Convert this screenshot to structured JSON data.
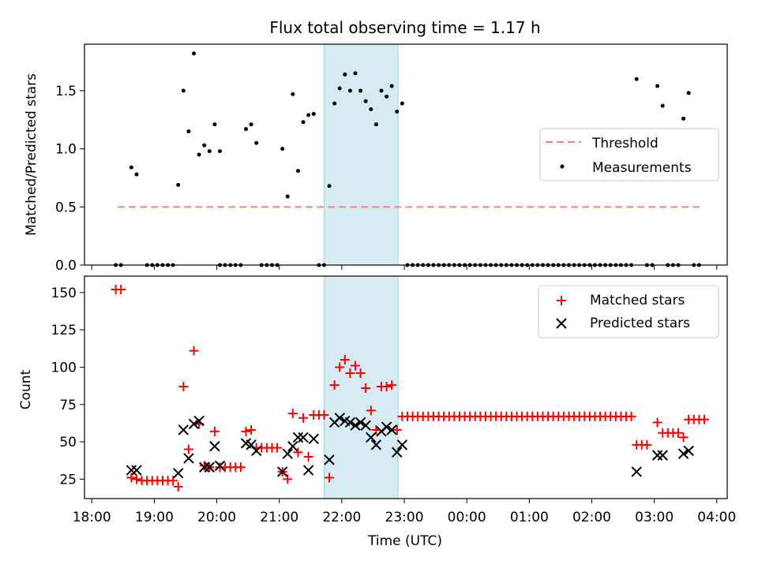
{
  "chart_data": [
    {
      "type": "scatter",
      "title": "Flux total observing time = 1.17 h",
      "xlabel": "",
      "ylabel": "Matched/Predicted stars",
      "ylim": [
        0,
        1.9
      ],
      "xlim": [
        "17:53",
        "04:10"
      ],
      "yticks": [
        "0.0",
        "0.5",
        "1.0",
        "1.5"
      ],
      "shaded_region": [
        "21:43",
        "22:54"
      ],
      "legend_position": "center-right",
      "threshold": {
        "name": "Threshold",
        "value": 0.5,
        "x_range": [
          "18:25",
          "03:45"
        ],
        "color": "#ff7f7f"
      },
      "series": [
        {
          "name": "Measurements",
          "color": "#000000",
          "points": [
            [
              "18:23",
              0
            ],
            [
              "18:28",
              0
            ],
            [
              "18:38",
              0.84
            ],
            [
              "18:43",
              0.78
            ],
            [
              "18:53",
              0
            ],
            [
              "18:58",
              0
            ],
            [
              "19:03",
              0
            ],
            [
              "19:08",
              0
            ],
            [
              "19:13",
              0
            ],
            [
              "19:18",
              0
            ],
            [
              "19:23",
              0.69
            ],
            [
              "19:28",
              1.5
            ],
            [
              "19:33",
              1.15
            ],
            [
              "19:38",
              1.82
            ],
            [
              "19:43",
              0.95
            ],
            [
              "19:48",
              1.03
            ],
            [
              "19:53",
              0.98
            ],
            [
              "19:58",
              1.21
            ],
            [
              "20:03",
              0.98
            ],
            [
              "20:03",
              0
            ],
            [
              "20:08",
              0
            ],
            [
              "20:13",
              0
            ],
            [
              "20:18",
              0
            ],
            [
              "20:23",
              0
            ],
            [
              "20:28",
              1.17
            ],
            [
              "20:33",
              1.21
            ],
            [
              "20:38",
              1.05
            ],
            [
              "20:43",
              0
            ],
            [
              "20:48",
              0
            ],
            [
              "20:53",
              0
            ],
            [
              "20:58",
              0
            ],
            [
              "21:03",
              1.0
            ],
            [
              "21:08",
              0.59
            ],
            [
              "21:13",
              1.47
            ],
            [
              "21:18",
              0.81
            ],
            [
              "21:23",
              1.23
            ],
            [
              "21:28",
              1.29
            ],
            [
              "21:33",
              1.3
            ],
            [
              "21:38",
              0
            ],
            [
              "21:43",
              0
            ],
            [
              "21:48",
              0.68
            ],
            [
              "21:53",
              1.39
            ],
            [
              "21:58",
              1.52
            ],
            [
              "22:03",
              1.64
            ],
            [
              "22:08",
              1.5
            ],
            [
              "22:13",
              1.65
            ],
            [
              "22:18",
              1.5
            ],
            [
              "22:23",
              1.41
            ],
            [
              "22:28",
              1.34
            ],
            [
              "22:33",
              1.21
            ],
            [
              "22:38",
              1.5
            ],
            [
              "22:43",
              1.45
            ],
            [
              "22:48",
              1.54
            ],
            [
              "22:53",
              1.32
            ],
            [
              "22:58",
              1.39
            ],
            [
              "23:03",
              0
            ],
            [
              "23:08",
              0
            ],
            [
              "23:13",
              0
            ],
            [
              "23:18",
              0
            ],
            [
              "23:23",
              0
            ],
            [
              "23:28",
              0
            ],
            [
              "23:33",
              0
            ],
            [
              "23:38",
              0
            ],
            [
              "23:43",
              0
            ],
            [
              "23:48",
              0
            ],
            [
              "23:53",
              0
            ],
            [
              "23:58",
              0
            ],
            [
              "00:03",
              0
            ],
            [
              "00:08",
              0
            ],
            [
              "00:13",
              0
            ],
            [
              "00:18",
              0
            ],
            [
              "00:23",
              0
            ],
            [
              "00:28",
              0
            ],
            [
              "00:33",
              0
            ],
            [
              "00:38",
              0
            ],
            [
              "00:43",
              0
            ],
            [
              "00:48",
              0
            ],
            [
              "00:53",
              0
            ],
            [
              "00:58",
              0
            ],
            [
              "01:03",
              0
            ],
            [
              "01:08",
              0
            ],
            [
              "01:13",
              0
            ],
            [
              "01:18",
              0
            ],
            [
              "01:23",
              0
            ],
            [
              "01:28",
              0
            ],
            [
              "01:33",
              0
            ],
            [
              "01:38",
              0
            ],
            [
              "01:43",
              0
            ],
            [
              "01:48",
              0
            ],
            [
              "01:53",
              0
            ],
            [
              "01:58",
              0
            ],
            [
              "02:03",
              0
            ],
            [
              "02:08",
              0
            ],
            [
              "02:13",
              0
            ],
            [
              "02:18",
              0
            ],
            [
              "02:23",
              0
            ],
            [
              "02:28",
              0
            ],
            [
              "02:33",
              0
            ],
            [
              "02:38",
              0
            ],
            [
              "02:43",
              1.6
            ],
            [
              "02:53",
              0
            ],
            [
              "02:58",
              0
            ],
            [
              "03:03",
              1.54
            ],
            [
              "03:08",
              1.37
            ],
            [
              "03:13",
              0
            ],
            [
              "03:18",
              0
            ],
            [
              "03:23",
              0
            ],
            [
              "03:28",
              1.26
            ],
            [
              "03:33",
              1.48
            ],
            [
              "03:38",
              0
            ],
            [
              "03:43",
              0
            ]
          ]
        }
      ]
    },
    {
      "type": "scatter",
      "title": "",
      "xlabel": "Time (UTC)",
      "ylabel": "Count",
      "ylim": [
        12,
        161
      ],
      "xlim": [
        "17:53",
        "04:10"
      ],
      "yticks": [
        "25",
        "50",
        "75",
        "100",
        "125",
        "150"
      ],
      "xticks": [
        "18:00",
        "19:00",
        "20:00",
        "21:00",
        "22:00",
        "23:00",
        "00:00",
        "01:00",
        "02:00",
        "03:00",
        "04:00"
      ],
      "shaded_region": [
        "21:43",
        "22:54"
      ],
      "legend_position": "upper-right",
      "series": [
        {
          "name": "Matched stars",
          "color": "#ff0000",
          "marker": "+",
          "points": [
            [
              "18:23",
              152
            ],
            [
              "18:28",
              152
            ],
            [
              "18:38",
              26
            ],
            [
              "18:43",
              25
            ],
            [
              "18:48",
              24
            ],
            [
              "18:53",
              24
            ],
            [
              "18:58",
              24
            ],
            [
              "19:03",
              24
            ],
            [
              "19:08",
              24
            ],
            [
              "19:13",
              24
            ],
            [
              "19:18",
              24
            ],
            [
              "19:23",
              20
            ],
            [
              "19:28",
              87
            ],
            [
              "19:33",
              45
            ],
            [
              "19:38",
              111
            ],
            [
              "19:43",
              62
            ],
            [
              "19:48",
              34
            ],
            [
              "19:53",
              33
            ],
            [
              "19:58",
              57
            ],
            [
              "20:03",
              33
            ],
            [
              "20:08",
              33
            ],
            [
              "20:13",
              33
            ],
            [
              "20:18",
              33
            ],
            [
              "20:23",
              33
            ],
            [
              "20:28",
              57
            ],
            [
              "20:33",
              58
            ],
            [
              "20:38",
              46
            ],
            [
              "20:43",
              46
            ],
            [
              "20:48",
              46
            ],
            [
              "20:53",
              46
            ],
            [
              "20:58",
              46
            ],
            [
              "21:03",
              30
            ],
            [
              "21:08",
              25
            ],
            [
              "21:13",
              69
            ],
            [
              "21:18",
              43
            ],
            [
              "21:23",
              66
            ],
            [
              "21:28",
              40
            ],
            [
              "21:33",
              68
            ],
            [
              "21:38",
              68
            ],
            [
              "21:43",
              68
            ],
            [
              "21:48",
              26
            ],
            [
              "21:53",
              88
            ],
            [
              "21:58",
              100
            ],
            [
              "22:03",
              105
            ],
            [
              "22:08",
              96
            ],
            [
              "22:13",
              101
            ],
            [
              "22:18",
              96
            ],
            [
              "22:23",
              86
            ],
            [
              "22:28",
              71
            ],
            [
              "22:33",
              58
            ],
            [
              "22:38",
              87
            ],
            [
              "22:43",
              87
            ],
            [
              "22:48",
              88
            ],
            [
              "22:53",
              58
            ],
            [
              "22:58",
              67
            ],
            [
              "23:03",
              67
            ],
            [
              "23:08",
              67
            ],
            [
              "23:13",
              67
            ],
            [
              "23:18",
              67
            ],
            [
              "23:23",
              67
            ],
            [
              "23:28",
              67
            ],
            [
              "23:33",
              67
            ],
            [
              "23:38",
              67
            ],
            [
              "23:43",
              67
            ],
            [
              "23:48",
              67
            ],
            [
              "23:53",
              67
            ],
            [
              "23:58",
              67
            ],
            [
              "00:03",
              67
            ],
            [
              "00:08",
              67
            ],
            [
              "00:13",
              67
            ],
            [
              "00:18",
              67
            ],
            [
              "00:23",
              67
            ],
            [
              "00:28",
              67
            ],
            [
              "00:33",
              67
            ],
            [
              "00:38",
              67
            ],
            [
              "00:43",
              67
            ],
            [
              "00:48",
              67
            ],
            [
              "00:53",
              67
            ],
            [
              "00:58",
              67
            ],
            [
              "01:03",
              67
            ],
            [
              "01:08",
              67
            ],
            [
              "01:13",
              67
            ],
            [
              "01:18",
              67
            ],
            [
              "01:23",
              67
            ],
            [
              "01:28",
              67
            ],
            [
              "01:33",
              67
            ],
            [
              "01:38",
              67
            ],
            [
              "01:43",
              67
            ],
            [
              "01:48",
              67
            ],
            [
              "01:53",
              67
            ],
            [
              "01:58",
              67
            ],
            [
              "02:03",
              67
            ],
            [
              "02:08",
              67
            ],
            [
              "02:13",
              67
            ],
            [
              "02:18",
              67
            ],
            [
              "02:23",
              67
            ],
            [
              "02:28",
              67
            ],
            [
              "02:33",
              67
            ],
            [
              "02:38",
              67
            ],
            [
              "02:43",
              48
            ],
            [
              "02:48",
              48
            ],
            [
              "02:53",
              48
            ],
            [
              "03:03",
              63
            ],
            [
              "03:08",
              56
            ],
            [
              "03:13",
              56
            ],
            [
              "03:18",
              56
            ],
            [
              "03:23",
              56
            ],
            [
              "03:28",
              53
            ],
            [
              "03:33",
              65
            ],
            [
              "03:38",
              65
            ],
            [
              "03:43",
              65
            ],
            [
              "03:48",
              65
            ]
          ]
        },
        {
          "name": "Predicted stars",
          "color": "#000000",
          "marker": "x",
          "points": [
            [
              "18:38",
              31
            ],
            [
              "18:43",
              31
            ],
            [
              "19:23",
              29
            ],
            [
              "19:28",
              58
            ],
            [
              "19:33",
              39
            ],
            [
              "19:38",
              62
            ],
            [
              "19:43",
              64
            ],
            [
              "19:48",
              33
            ],
            [
              "19:53",
              33
            ],
            [
              "19:58",
              47
            ],
            [
              "20:03",
              34
            ],
            [
              "20:28",
              49
            ],
            [
              "20:33",
              48
            ],
            [
              "20:38",
              44
            ],
            [
              "21:03",
              30
            ],
            [
              "21:08",
              42
            ],
            [
              "21:13",
              47
            ],
            [
              "21:18",
              53
            ],
            [
              "21:23",
              53
            ],
            [
              "21:28",
              31
            ],
            [
              "21:33",
              52
            ],
            [
              "21:48",
              38
            ],
            [
              "21:53",
              63
            ],
            [
              "21:58",
              66
            ],
            [
              "22:03",
              64
            ],
            [
              "22:08",
              63
            ],
            [
              "22:13",
              61
            ],
            [
              "22:18",
              63
            ],
            [
              "22:23",
              61
            ],
            [
              "22:28",
              53
            ],
            [
              "22:33",
              48
            ],
            [
              "22:38",
              57
            ],
            [
              "22:43",
              60
            ],
            [
              "22:48",
              58
            ],
            [
              "22:53",
              43
            ],
            [
              "22:58",
              48
            ],
            [
              "02:43",
              30
            ],
            [
              "03:03",
              41
            ],
            [
              "03:08",
              41
            ],
            [
              "03:28",
              42
            ],
            [
              "03:33",
              44
            ]
          ]
        }
      ]
    }
  ]
}
